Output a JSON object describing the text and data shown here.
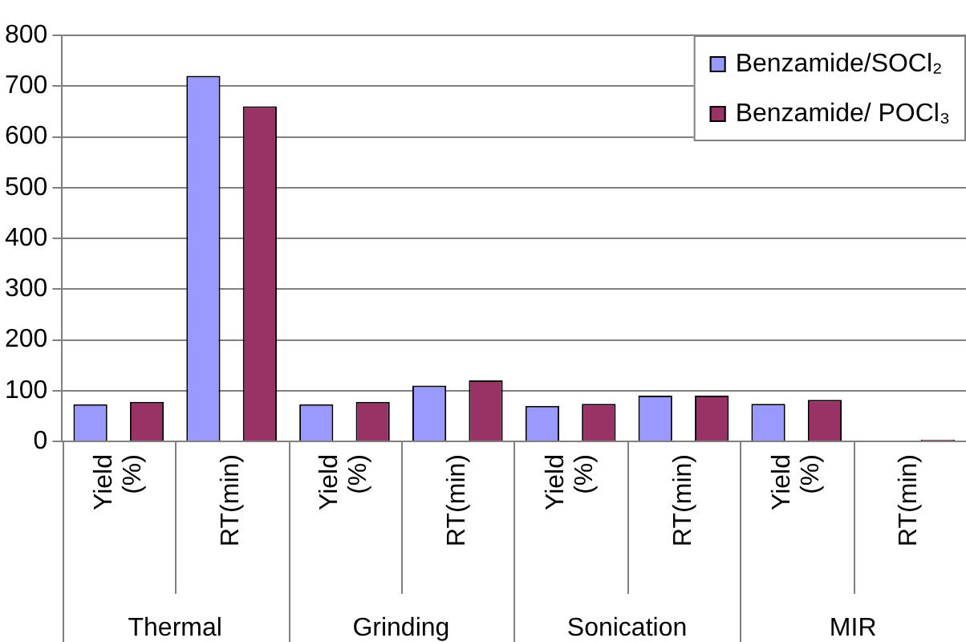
{
  "chart_data": {
    "type": "bar",
    "categories": [
      "Yield (%)",
      "RT(min)",
      "Yield (%)",
      "RT(min)",
      "Yield (%)",
      "RT(min)",
      "Yield (%)",
      "RT(min)"
    ],
    "series": [
      {
        "name": "Benzamide/SOCl₂",
        "color": "#9999ff",
        "values": [
          73,
          720,
          73,
          110,
          70,
          90,
          74,
          null
        ]
      },
      {
        "name": "Benzamide/ POCl₃",
        "color": "#993366",
        "values": [
          78,
          660,
          78,
          120,
          74,
          90,
          82,
          3
        ]
      }
    ],
    "annotations": [
      "Thermal",
      "Grinding",
      "Sonication",
      "MIR"
    ],
    "ylim": [
      0,
      800
    ],
    "yticks": [
      0,
      100,
      200,
      300,
      400,
      500,
      600,
      700,
      800
    ],
    "grid": "y",
    "legend": "top right"
  }
}
